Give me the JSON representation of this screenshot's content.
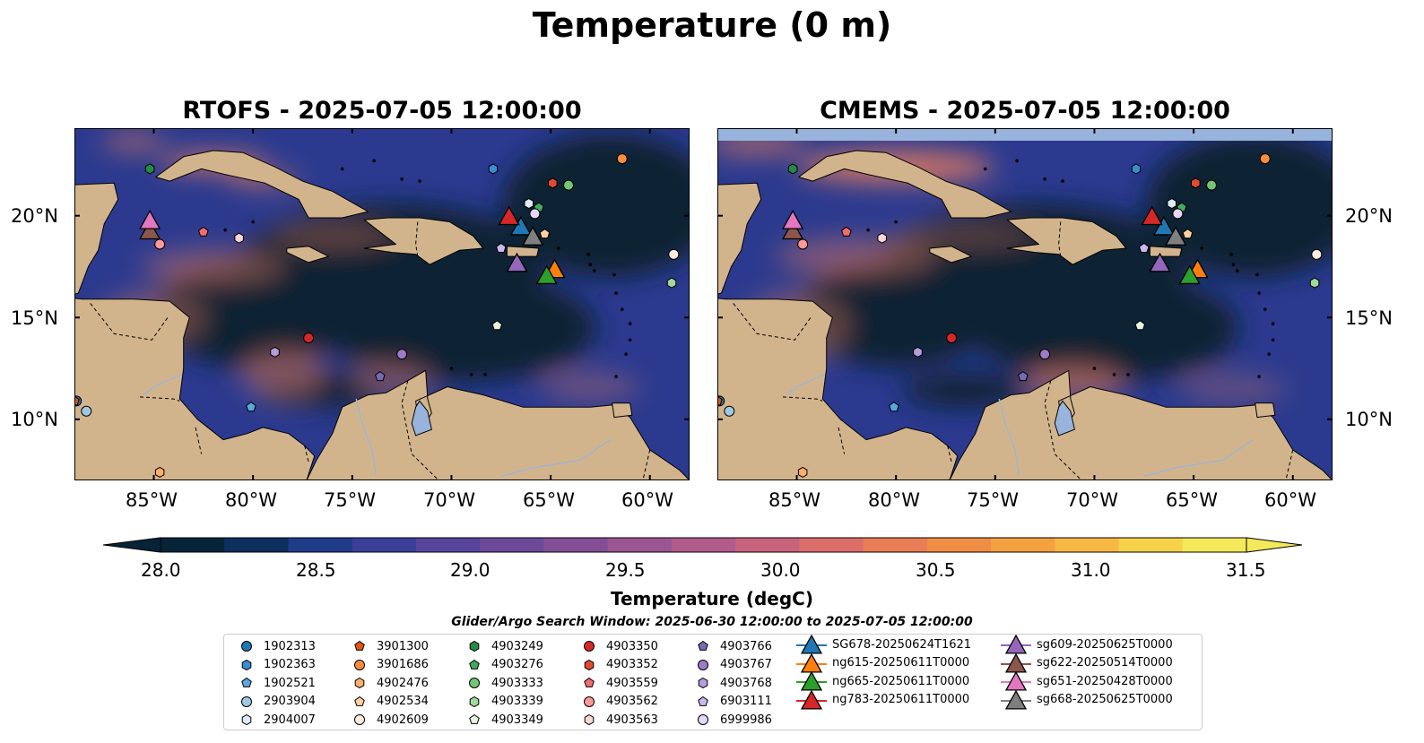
{
  "title": "Temperature (0 m)",
  "panels": [
    {
      "id": "rtofs",
      "title": "RTOFS - 2025-07-05 12:00:00"
    },
    {
      "id": "cmems",
      "title": "CMEMS - 2025-07-05 12:00:00"
    }
  ],
  "map": {
    "lon_range": [
      -89,
      -58
    ],
    "lat_range": [
      7,
      24.3
    ],
    "lon_ticks": [
      "85°W",
      "80°W",
      "75°W",
      "70°W",
      "65°W",
      "60°W"
    ],
    "lat_ticks": [
      "20°N",
      "15°N",
      "10°N"
    ],
    "colors": {
      "land": "#d2b48c",
      "ocean_low": "#0a2233",
      "ocean_mid": "#2b3a8f",
      "warm": "#e07a5f",
      "missing": "#98b4dc",
      "lake": "#98b4dc"
    }
  },
  "colorbar": {
    "label": "Temperature (degC)",
    "ticks": [
      "28.0",
      "28.5",
      "29.0",
      "29.5",
      "30.0",
      "30.5",
      "31.0",
      "31.5"
    ],
    "range": [
      28.0,
      31.5
    ],
    "colors": [
      "#062338",
      "#0e2f5e",
      "#1f3b8a",
      "#3a3f99",
      "#56459b",
      "#6c4a99",
      "#844e96",
      "#9a5593",
      "#b25c8c",
      "#c8637d",
      "#dc6e6a",
      "#e87d56",
      "#f08e45",
      "#f4a13f",
      "#f6b843",
      "#f5d24a",
      "#f3e95a"
    ],
    "extend": "both"
  },
  "search_window": "Glider/Argo Search Window: 2025-06-30 12:00:00 to 2025-07-05 12:00:00",
  "argo_floats": [
    {
      "id": "1902313",
      "color": "#1f77b4",
      "marker": "circle",
      "lon": -88.9,
      "lat": 10.9
    },
    {
      "id": "1902363",
      "color": "#3a8ed0",
      "marker": "hexagon",
      "lon": -67.9,
      "lat": 22.3
    },
    {
      "id": "1902521",
      "color": "#5aa7e0",
      "marker": "pentagon",
      "lon": -80.1,
      "lat": 10.6
    },
    {
      "id": "2903904",
      "color": "#9ecae1",
      "marker": "circle",
      "lon": -88.4,
      "lat": 10.4
    },
    {
      "id": "2904007",
      "color": "#deebf7",
      "marker": "hexagon",
      "lon": -66.1,
      "lat": 20.6
    },
    {
      "id": "3901300",
      "color": "#e6550d",
      "marker": "pentagon",
      "lon": -89.0,
      "lat": 10.9
    },
    {
      "id": "3901686",
      "color": "#fd8d3c",
      "marker": "circle",
      "lon": -61.4,
      "lat": 22.8
    },
    {
      "id": "4902476",
      "color": "#fdae6b",
      "marker": "hexagon",
      "lon": -84.7,
      "lat": 7.4
    },
    {
      "id": "4902534",
      "color": "#fdd0a2",
      "marker": "pentagon",
      "lon": -65.3,
      "lat": 19.1
    },
    {
      "id": "4902609",
      "color": "#feedde",
      "marker": "circle",
      "lon": -58.8,
      "lat": 18.1
    },
    {
      "id": "4903249",
      "color": "#238b45",
      "marker": "hexagon",
      "lon": -85.2,
      "lat": 22.3
    },
    {
      "id": "4903276",
      "color": "#41ab5d",
      "marker": "pentagon",
      "lon": -65.6,
      "lat": 20.4
    },
    {
      "id": "4903333",
      "color": "#74c476",
      "marker": "circle",
      "lon": -64.1,
      "lat": 21.5
    },
    {
      "id": "4903339",
      "color": "#a1d99b",
      "marker": "hexagon",
      "lon": -58.9,
      "lat": 16.7
    },
    {
      "id": "4903349",
      "color": "#e5f5e0",
      "marker": "pentagon",
      "lon": -67.7,
      "lat": 14.6
    },
    {
      "id": "4903350",
      "color": "#d62728",
      "marker": "circle",
      "lon": -77.2,
      "lat": 14.0
    },
    {
      "id": "4903352",
      "color": "#e34a33",
      "marker": "hexagon",
      "lon": -64.9,
      "lat": 21.6
    },
    {
      "id": "4903559",
      "color": "#f46d6d",
      "marker": "pentagon",
      "lon": -82.5,
      "lat": 19.2
    },
    {
      "id": "4903562",
      "color": "#fb9a99",
      "marker": "circle",
      "lon": -84.7,
      "lat": 18.6
    },
    {
      "id": "4903563",
      "color": "#fdd5d5",
      "marker": "hexagon",
      "lon": -80.7,
      "lat": 18.9
    },
    {
      "id": "4903766",
      "color": "#756bb1",
      "marker": "pentagon",
      "lon": -73.6,
      "lat": 12.1
    },
    {
      "id": "4903767",
      "color": "#9e7ac9",
      "marker": "circle",
      "lon": -72.5,
      "lat": 13.2
    },
    {
      "id": "4903768",
      "color": "#b39ddb",
      "marker": "hexagon",
      "lon": -78.9,
      "lat": 13.3
    },
    {
      "id": "6903111",
      "color": "#cbb8ef",
      "marker": "pentagon",
      "lon": -67.5,
      "lat": 18.4
    },
    {
      "id": "6999986",
      "color": "#e5d7fb",
      "marker": "circle",
      "lon": -65.8,
      "lat": 20.1
    }
  ],
  "gliders": [
    {
      "id": "SG678-20250624T1621",
      "color": "#1f77b4",
      "lon": -66.5,
      "lat": 19.5
    },
    {
      "id": "ng615-20250611T0000",
      "color": "#ff7f0e",
      "lon": -64.8,
      "lat": 17.4
    },
    {
      "id": "ng665-20250611T0000",
      "color": "#2ca02c",
      "lon": -65.2,
      "lat": 17.1
    },
    {
      "id": "ng783-20250611T0000",
      "color": "#d62728",
      "lon": -67.1,
      "lat": 20.0
    },
    {
      "id": "sg609-20250625T0000",
      "color": "#9467bd",
      "lon": -66.7,
      "lat": 17.7
    },
    {
      "id": "sg622-20250514T0000",
      "color": "#8c564b",
      "lon": -85.2,
      "lat": 19.3
    },
    {
      "id": "sg651-20250428T0000",
      "color": "#e377c2",
      "lon": -85.2,
      "lat": 19.8
    },
    {
      "id": "sg668-20250625T0000",
      "color": "#7f7f7f",
      "lon": -65.9,
      "lat": 19.0
    }
  ]
}
